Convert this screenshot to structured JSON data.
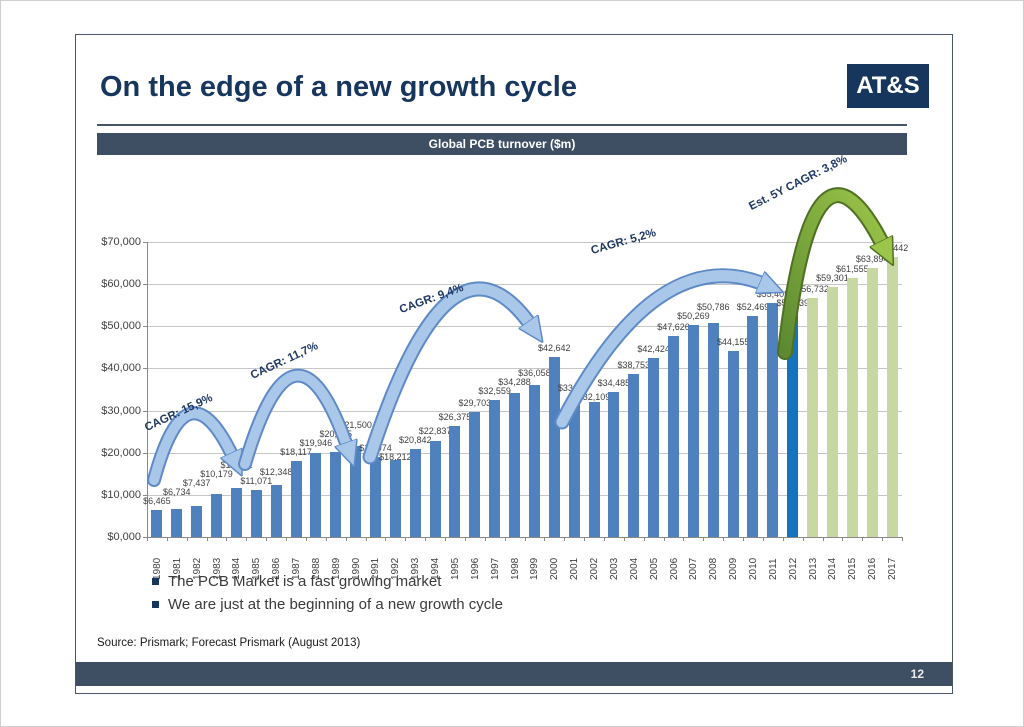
{
  "slide": {
    "title": "On the edge of a new growth cycle",
    "logo_text": "AT&S",
    "banner": "Global PCB turnover ($m)",
    "bullets": [
      "The PCB Market is a fast growing market",
      "We are just at the beginning of a new growth cycle"
    ],
    "source": "Source: Prismark; Forecast Prismark (August 2013)",
    "page_number": "12"
  },
  "colors": {
    "title_navy": "#17365D",
    "banner_bg": "#3E4E63",
    "bar_blue": "#4E81BD",
    "bar_highlight_blue": "#1473BE",
    "bar_forecast_green": "#C7D8A2",
    "arrow_blue_fill": "#A9C7E9",
    "arrow_blue_border": "#5E8AC7",
    "arrow_green_fill": "#79A840",
    "arrow_green_border": "#4E7022",
    "gridline": "#C6C6C6"
  },
  "chart_data": {
    "type": "bar",
    "title": "Global PCB turnover ($m)",
    "categories": [
      "1980",
      "1981",
      "1982",
      "1983",
      "1984",
      "1985",
      "1986",
      "1987",
      "1988",
      "1989",
      "1990",
      "1991",
      "1992",
      "1993",
      "1994",
      "1995",
      "1996",
      "1997",
      "1998",
      "1999",
      "2000",
      "2001",
      "2002",
      "2003",
      "2004",
      "2005",
      "2006",
      "2007",
      "2008",
      "2009",
      "2010",
      "2011",
      "2012",
      "2013",
      "2014",
      "2015",
      "2016",
      "2017"
    ],
    "values": [
      6465,
      6734,
      7437,
      10179,
      11682,
      11071,
      12348,
      18117,
      19946,
      20185,
      21500,
      18974,
      18212,
      20842,
      22837,
      26375,
      29703,
      32559,
      34288,
      36058,
      42642,
      33237,
      32109,
      34485,
      38753,
      42424,
      47626,
      50269,
      50786,
      44155,
      52469,
      55409,
      55039,
      56732,
      59301,
      61555,
      63894,
      66442
    ],
    "highlight_year": "2012",
    "forecast_from_year": "2013",
    "ylim": [
      0,
      70000
    ],
    "ytick_step": 10000,
    "ytick_labels": [
      "$0,000",
      "$10,000",
      "$20,000",
      "$30,000",
      "$40,000",
      "$50,000",
      "$60,000",
      "$70,000"
    ],
    "grid": true,
    "legend": "none",
    "xlabel": "",
    "ylabel": "",
    "annotations": [
      {
        "label": "CAGR: 15,9%"
      },
      {
        "label": "CAGR: 11,7%"
      },
      {
        "label": "CAGR: 9,4%"
      },
      {
        "label": "CAGR: 5,2%"
      },
      {
        "label": "Est. 5Y CAGR: 3,8%"
      }
    ]
  }
}
